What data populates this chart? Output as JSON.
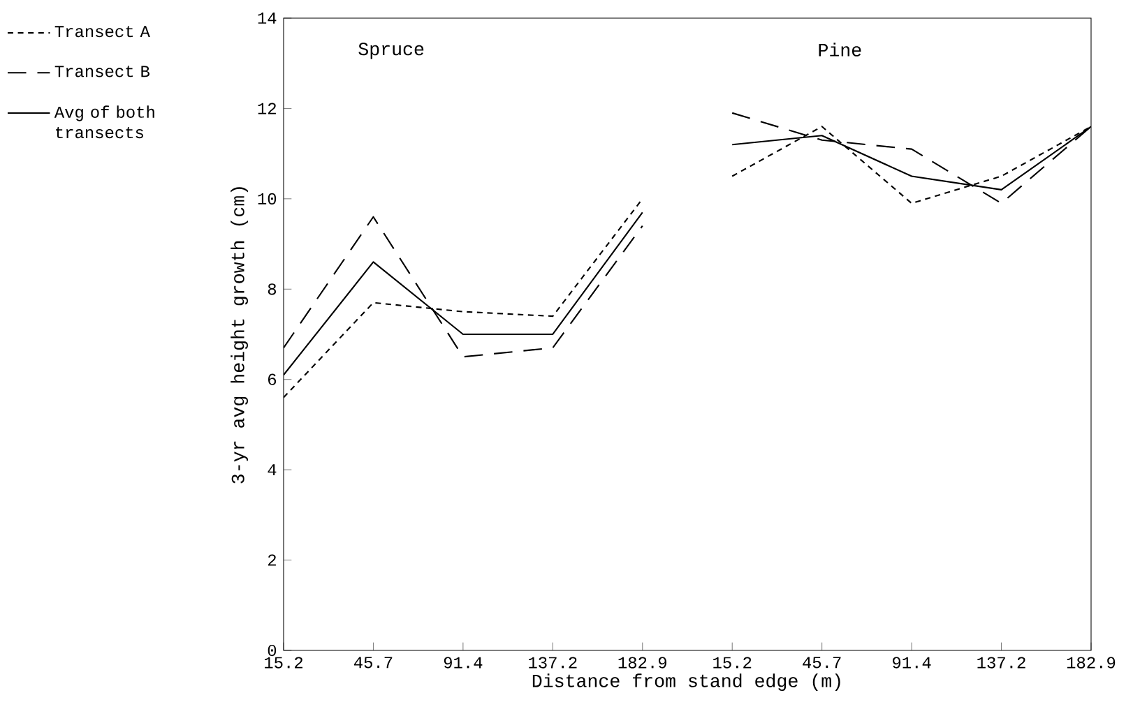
{
  "chart_data": {
    "type": "line",
    "xlabel": "Distance from stand edge (m)",
    "ylabel": "3-yr avg height growth (cm)",
    "categories": [
      "15.2",
      "45.7",
      "91.4",
      "137.2",
      "182.9",
      "15.2",
      "45.7",
      "91.4",
      "137.2",
      "182.9"
    ],
    "ylim": [
      0,
      14
    ],
    "yticks": [
      0,
      2,
      4,
      6,
      8,
      10,
      12,
      14
    ],
    "legend": "left",
    "grid": false,
    "marker": "none",
    "annotations": [
      "Spruce",
      "Pine"
    ],
    "series": [
      {
        "name": "Transect A",
        "color": "#000000",
        "line_style": "dotted",
        "values": [
          5.6,
          7.7,
          7.5,
          7.4,
          10.0,
          null,
          null,
          null,
          null,
          null
        ]
      },
      {
        "name": "Transect B",
        "color": "#000000",
        "line_style": "dashed",
        "values": [
          6.7,
          9.6,
          6.5,
          6.7,
          9.4,
          null,
          null,
          null,
          null,
          null
        ]
      },
      {
        "name": "Avg of both transects",
        "color": "#000000",
        "line_style": "solid",
        "values": [
          6.1,
          8.6,
          7.0,
          7.0,
          9.7,
          null,
          null,
          null,
          null,
          null
        ]
      },
      {
        "color": "#000000",
        "line_style": "dotted",
        "values": [
          null,
          null,
          null,
          null,
          null,
          10.5,
          11.6,
          9.9,
          10.5,
          11.6
        ]
      },
      {
        "color": "#000000",
        "line_style": "dashed",
        "values": [
          null,
          null,
          null,
          null,
          null,
          11.9,
          11.3,
          11.1,
          9.9,
          11.6
        ]
      },
      {
        "color": "#000000",
        "line_style": "solid",
        "values": [
          null,
          null,
          null,
          null,
          null,
          11.2,
          11.4,
          10.5,
          10.2,
          11.6
        ]
      }
    ]
  }
}
